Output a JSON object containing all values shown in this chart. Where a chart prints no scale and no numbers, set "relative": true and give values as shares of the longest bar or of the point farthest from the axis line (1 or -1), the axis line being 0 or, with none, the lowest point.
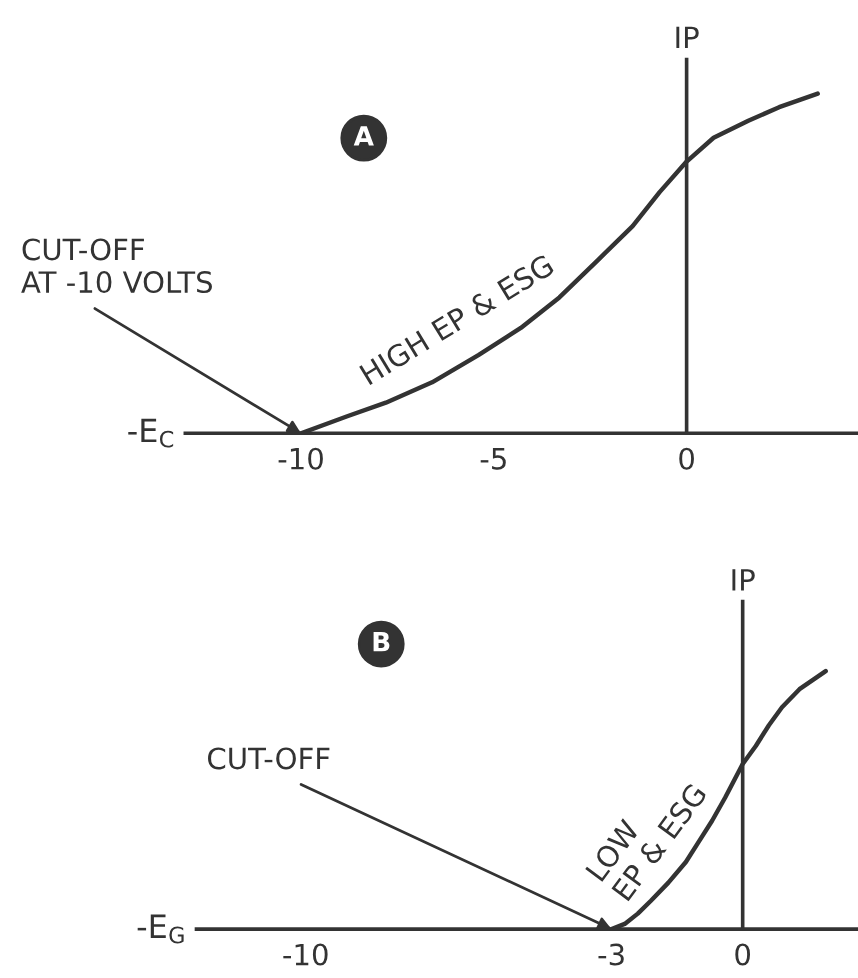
{
  "chart_data": [
    {
      "type": "line",
      "title": "A",
      "xlabel": "-E$_{C}$",
      "ylabel": "IP",
      "relative": true,
      "xlim": [
        -13,
        4.4
      ],
      "xticks": [
        -10,
        -5,
        0
      ],
      "x": [
        -10,
        -8.8,
        -7.8,
        -6.6,
        -5.4,
        -4.3,
        -3.3,
        -2.3,
        -1.4,
        -0.7,
        0,
        0.7,
        1.6,
        2.4,
        3.4
      ],
      "series": [
        {
          "name": "HIGH EP & ESG",
          "color": "#333333",
          "values": [
            0,
            0.05,
            0.09,
            0.15,
            0.23,
            0.31,
            0.4,
            0.51,
            0.61,
            0.71,
            0.8,
            0.87,
            0.92,
            0.96,
            1
          ]
        }
      ],
      "annotations": [
        {
          "text": "CUT-OFF\nAT -10 VOLTS",
          "x": -10,
          "y": 0
        }
      ]
    },
    {
      "type": "line",
      "title": "B",
      "xlabel": "-E$_{G}$",
      "ylabel": "IP",
      "relative": true,
      "xlim": [
        -12.5,
        2.6
      ],
      "xticks": [
        -10,
        -3,
        0
      ],
      "x": [
        -3,
        -2.7,
        -2.4,
        -2.1,
        -1.7,
        -1.3,
        -1.0,
        -0.7,
        -0.4,
        0,
        0.3,
        0.6,
        0.9,
        1.3,
        1.9
      ],
      "series": [
        {
          "name": "LOW\nEP & ESG",
          "color": "#333333",
          "values": [
            0,
            0.02,
            0.06,
            0.11,
            0.18,
            0.26,
            0.34,
            0.42,
            0.51,
            0.64,
            0.71,
            0.79,
            0.86,
            0.93,
            1
          ]
        }
      ],
      "annotations": [
        {
          "text": "CUT-OFF",
          "x": -3,
          "y": 0
        }
      ]
    }
  ]
}
